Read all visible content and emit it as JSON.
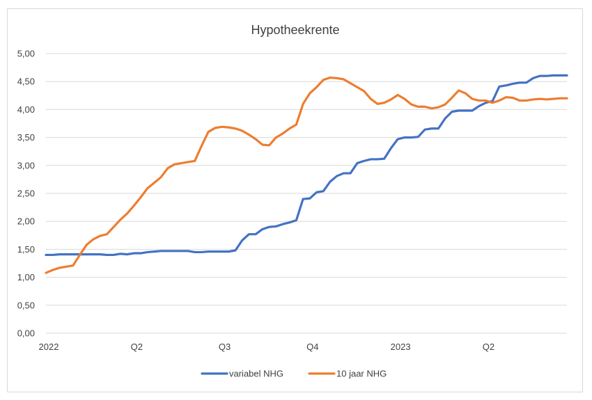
{
  "chart_data": {
    "type": "line",
    "title": "Hypotheekrente",
    "xlabel": "",
    "ylabel": "",
    "ylim": [
      0,
      5
    ],
    "ytick_labels": [
      "0,00",
      "0,50",
      "1,00",
      "1,50",
      "2,00",
      "2,50",
      "3,00",
      "3,50",
      "4,00",
      "4,50",
      "5,00"
    ],
    "x_tick_labels": [
      {
        "label": "2022",
        "week": 0
      },
      {
        "label": "Q2",
        "week": 13
      },
      {
        "label": "Q3",
        "week": 26
      },
      {
        "label": "Q4",
        "week": 39
      },
      {
        "label": "2023",
        "week": 52
      },
      {
        "label": "Q2",
        "week": 65
      }
    ],
    "x": [
      0,
      1,
      2,
      3,
      4,
      5,
      6,
      7,
      8,
      9,
      10,
      11,
      12,
      13,
      14,
      15,
      16,
      17,
      18,
      19,
      20,
      21,
      22,
      23,
      24,
      25,
      26,
      27,
      28,
      29,
      30,
      31,
      32,
      33,
      34,
      35,
      36,
      37,
      38,
      39,
      40,
      41,
      42,
      43,
      44,
      45,
      46,
      47,
      48,
      49,
      50,
      51,
      52,
      53,
      54,
      55,
      56,
      57,
      58,
      59,
      60,
      61,
      62,
      63,
      64,
      65,
      66,
      67,
      68,
      69,
      70,
      71,
      72,
      73,
      74,
      75,
      76,
      77
    ],
    "grid": true,
    "legend_position": "bottom",
    "series": [
      {
        "name": "variabel NHG",
        "color": "#4472c4",
        "values": [
          1.4,
          1.4,
          1.41,
          1.41,
          1.41,
          1.41,
          1.41,
          1.41,
          1.41,
          1.4,
          1.4,
          1.42,
          1.41,
          1.43,
          1.43,
          1.45,
          1.46,
          1.47,
          1.47,
          1.47,
          1.47,
          1.47,
          1.45,
          1.45,
          1.46,
          1.46,
          1.46,
          1.46,
          1.48,
          1.66,
          1.77,
          1.77,
          1.86,
          1.9,
          1.91,
          1.95,
          1.98,
          2.02,
          2.4,
          2.41,
          2.52,
          2.54,
          2.71,
          2.81,
          2.86,
          2.86,
          3.04,
          3.08,
          3.11,
          3.11,
          3.12,
          3.31,
          3.47,
          3.5,
          3.5,
          3.51,
          3.64,
          3.66,
          3.66,
          3.84,
          3.96,
          3.98,
          3.98,
          3.98,
          4.06,
          4.12,
          4.15,
          4.41,
          4.43,
          4.46,
          4.48,
          4.48,
          4.56,
          4.6,
          4.6,
          4.61,
          4.61,
          4.61
        ]
      },
      {
        "name": "10 jaar NHG",
        "color": "#ed7d31",
        "values": [
          1.08,
          1.13,
          1.17,
          1.19,
          1.21,
          1.4,
          1.58,
          1.68,
          1.74,
          1.77,
          1.9,
          2.03,
          2.14,
          2.28,
          2.43,
          2.59,
          2.69,
          2.79,
          2.95,
          3.02,
          3.04,
          3.06,
          3.08,
          3.35,
          3.6,
          3.67,
          3.69,
          3.68,
          3.66,
          3.62,
          3.55,
          3.47,
          3.37,
          3.36,
          3.5,
          3.57,
          3.66,
          3.73,
          4.1,
          4.29,
          4.4,
          4.53,
          4.57,
          4.56,
          4.54,
          4.47,
          4.4,
          4.33,
          4.19,
          4.1,
          4.12,
          4.18,
          4.26,
          4.19,
          4.09,
          4.05,
          4.05,
          4.02,
          4.04,
          4.09,
          4.21,
          4.34,
          4.29,
          4.19,
          4.16,
          4.16,
          4.12,
          4.16,
          4.22,
          4.21,
          4.16,
          4.16,
          4.18,
          4.19,
          4.18,
          4.19,
          4.2,
          4.2
        ]
      }
    ]
  }
}
